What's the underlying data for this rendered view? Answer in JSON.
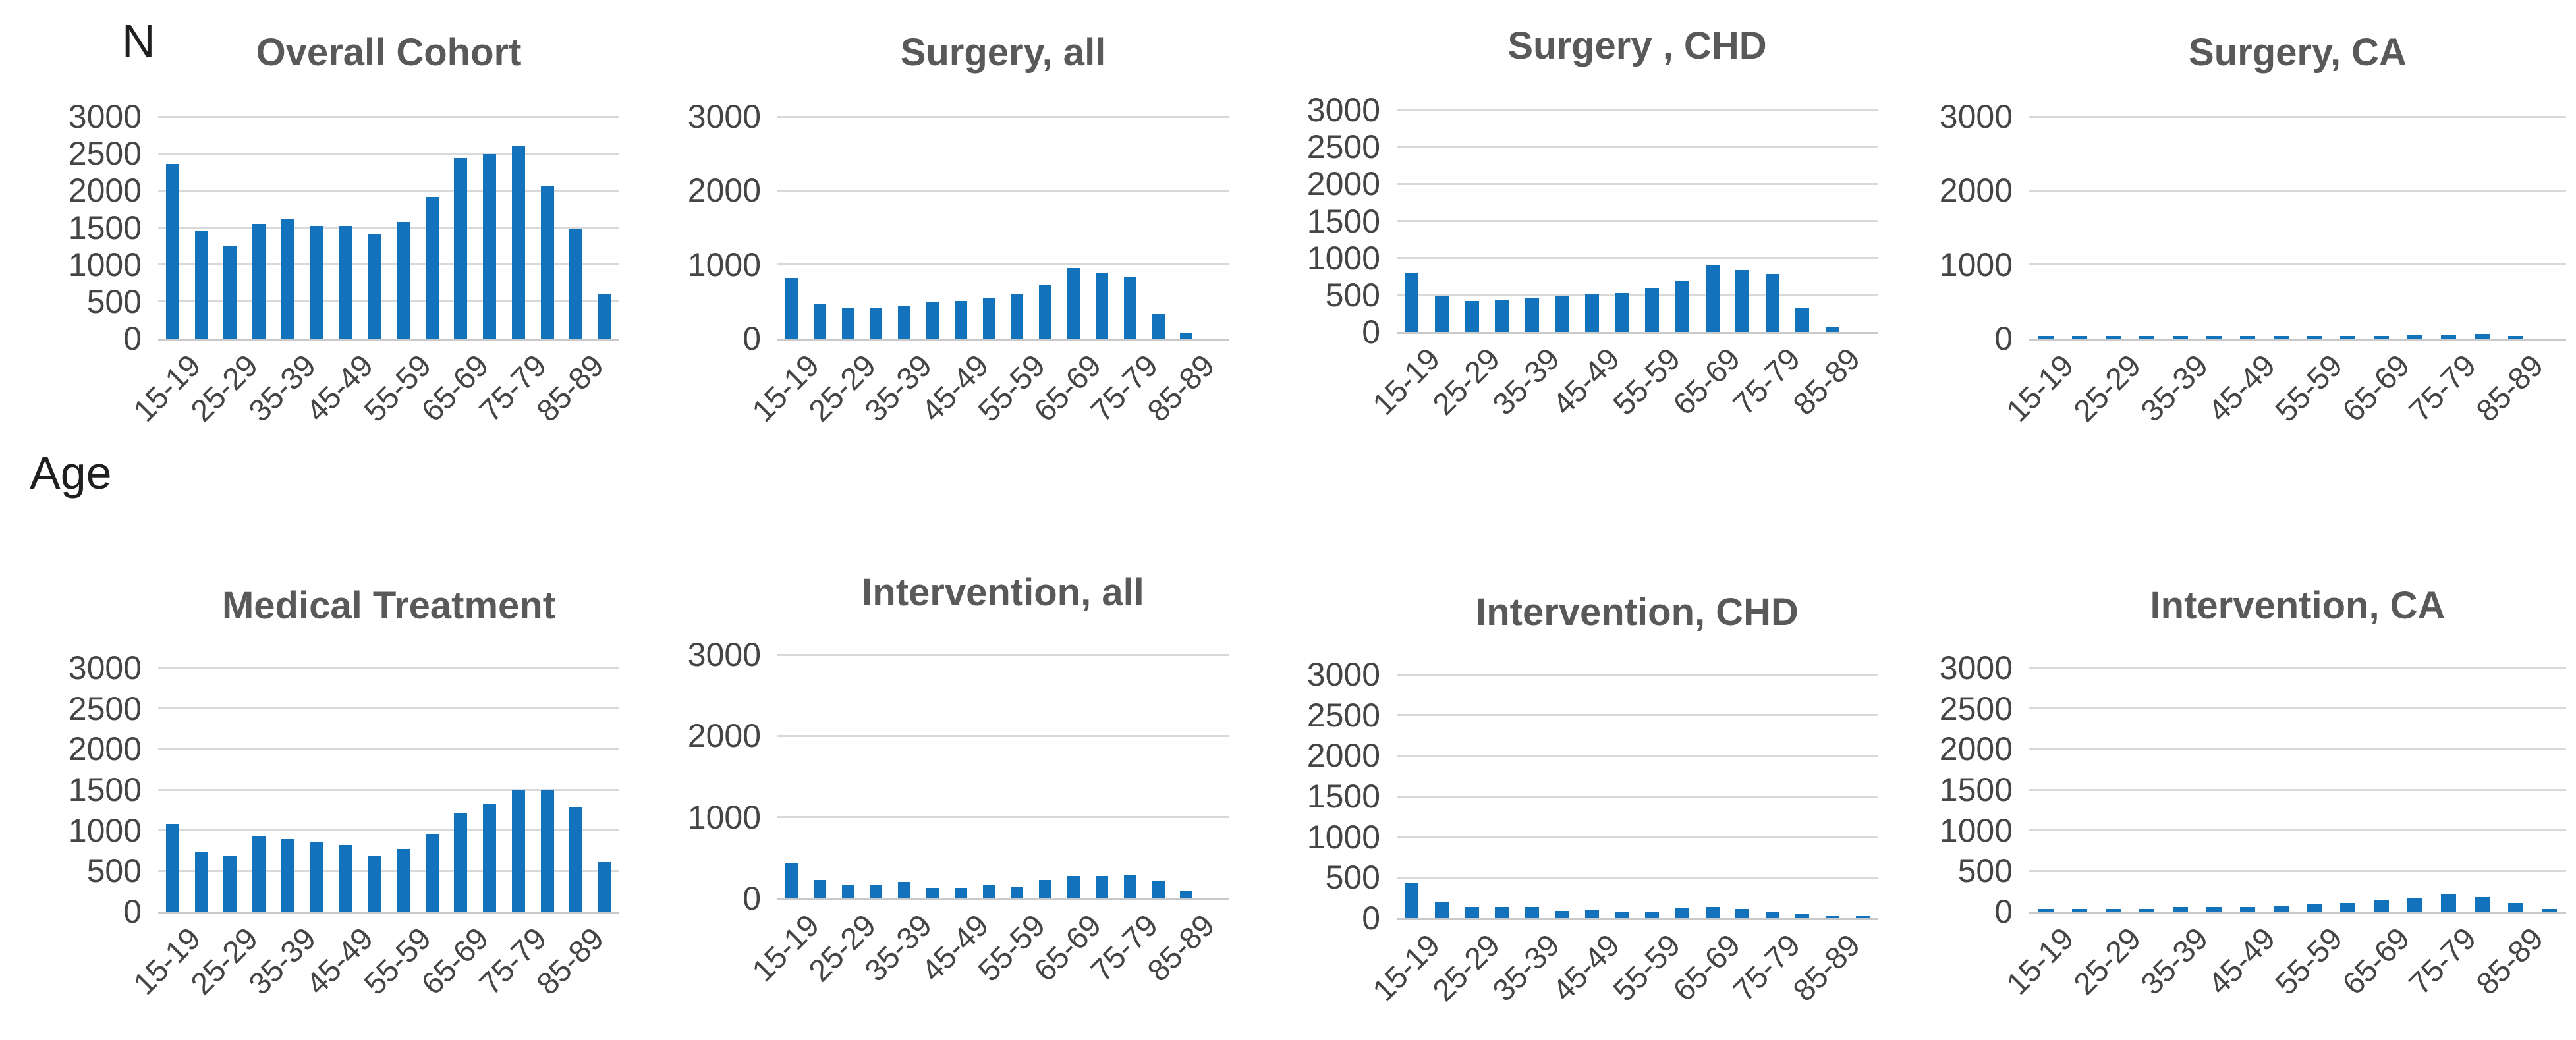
{
  "figure": {
    "ylabel": "N",
    "xlabel": "Age"
  },
  "colors": {
    "bar": "#1273BC",
    "gridline": "#D9D9D9",
    "axis_line": "#C9C9C9",
    "title_text": "#595959",
    "tick_text": "#454545",
    "page_text": "#1f1f1f"
  },
  "chart_data": {
    "type": "bar",
    "layout": "2 rows x 4 columns small multiples",
    "title": "",
    "xlabel": "Age",
    "ylabel": "N",
    "ylim": [
      0,
      3000
    ],
    "grid": true,
    "legend": false,
    "bar_color": "#1273BC",
    "categories": [
      "15-19",
      "20-24",
      "25-29",
      "30-34",
      "35-39",
      "40-44",
      "45-49",
      "50-54",
      "55-59",
      "60-64",
      "65-69",
      "70-74",
      "75-79",
      "80-84",
      "85-89",
      "90-94"
    ],
    "x_tick_labels_shown": [
      "15-19",
      "25-29",
      "35-39",
      "45-49",
      "55-59",
      "65-69",
      "75-79",
      "85-89"
    ],
    "subplots": [
      {
        "title": "Overall Cohort",
        "y_ticks": [
          3000,
          2500,
          2000,
          1500,
          1000,
          500,
          0
        ],
        "values": [
          2360,
          1450,
          1260,
          1550,
          1610,
          1520,
          1520,
          1420,
          1580,
          1910,
          2440,
          2490,
          2610,
          2060,
          1490,
          610
        ]
      },
      {
        "title": "Surgery, all",
        "y_ticks": [
          3000,
          2000,
          1000,
          0
        ],
        "values": [
          820,
          460,
          410,
          410,
          450,
          500,
          510,
          540,
          610,
          730,
          950,
          890,
          840,
          330,
          80,
          0
        ]
      },
      {
        "title": "Surgery , CHD",
        "y_ticks": [
          3000,
          2500,
          2000,
          1500,
          1000,
          500,
          0
        ],
        "values": [
          800,
          480,
          415,
          430,
          455,
          485,
          505,
          525,
          595,
          695,
          900,
          840,
          780,
          330,
          60,
          0
        ]
      },
      {
        "title": "Surgery, CA",
        "y_ticks": [
          3000,
          2000,
          1000,
          0
        ],
        "values": [
          10,
          5,
          5,
          10,
          30,
          25,
          25,
          20,
          25,
          25,
          30,
          55,
          45,
          65,
          15,
          0
        ]
      },
      {
        "title": "Medical Treatment",
        "y_ticks": [
          3000,
          2500,
          2000,
          1500,
          1000,
          500,
          0
        ],
        "values": [
          1080,
          730,
          690,
          930,
          890,
          860,
          820,
          690,
          770,
          960,
          1220,
          1330,
          1500,
          1490,
          1290,
          610
        ]
      },
      {
        "title": "Intervention, all",
        "y_ticks": [
          3000,
          2000,
          1000,
          0
        ],
        "values": [
          430,
          230,
          170,
          170,
          200,
          130,
          130,
          170,
          150,
          230,
          280,
          280,
          290,
          220,
          90,
          0
        ]
      },
      {
        "title": "Intervention, CHD",
        "y_ticks": [
          3000,
          2500,
          2000,
          1500,
          1000,
          500,
          0
        ],
        "values": [
          430,
          200,
          140,
          140,
          140,
          90,
          100,
          80,
          70,
          120,
          140,
          110,
          80,
          50,
          15,
          10
        ]
      },
      {
        "title": "Intervention, CA",
        "y_ticks": [
          3000,
          2500,
          2000,
          1500,
          1000,
          500,
          0
        ],
        "values": [
          10,
          10,
          10,
          25,
          60,
          55,
          55,
          65,
          90,
          105,
          140,
          170,
          220,
          180,
          105,
          30
        ]
      }
    ]
  }
}
